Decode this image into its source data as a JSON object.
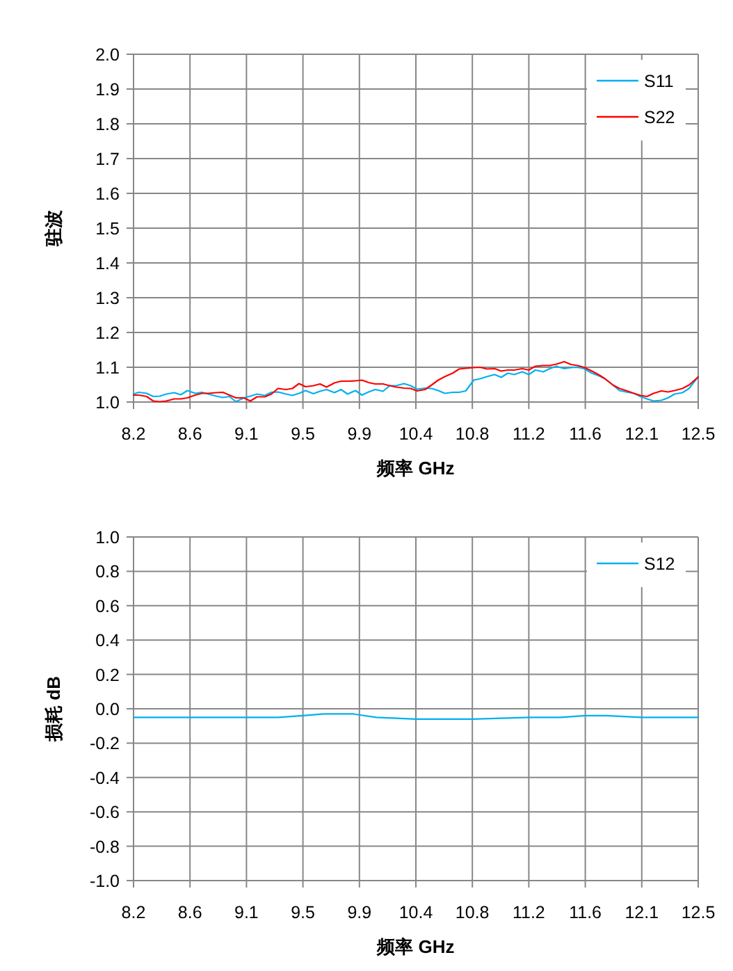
{
  "chart_data": [
    {
      "type": "line",
      "xlabel": "频率 GHz",
      "ylabel": "驻波",
      "xlim": [
        8.2,
        12.5
      ],
      "xticks": [
        {
          "value": 8.2,
          "label": "8.2"
        },
        {
          "value": 8.63,
          "label": "8.6"
        },
        {
          "value": 9.06,
          "label": "9.1"
        },
        {
          "value": 9.49,
          "label": "9.5"
        },
        {
          "value": 9.92,
          "label": "9.9"
        },
        {
          "value": 10.35,
          "label": "10.4"
        },
        {
          "value": 10.78,
          "label": "10.8"
        },
        {
          "value": 11.21,
          "label": "11.2"
        },
        {
          "value": 11.64,
          "label": "11.6"
        },
        {
          "value": 12.07,
          "label": "12.1"
        },
        {
          "value": 12.5,
          "label": "12.5"
        }
      ],
      "ylim": [
        1,
        2
      ],
      "yticks": [
        {
          "value": 1,
          "label": "1.0"
        },
        1.1,
        1.2,
        1.3,
        1.4,
        1.5,
        1.6,
        1.7,
        1.8,
        1.9,
        {
          "value": 2,
          "label": "2.0"
        }
      ],
      "grid": true,
      "legend": "top right",
      "x": [
        8.2,
        8.24,
        8.3,
        8.35,
        8.4,
        8.45,
        8.51,
        8.56,
        8.61,
        8.67,
        8.72,
        8.77,
        8.83,
        8.88,
        8.93,
        8.98,
        9.04,
        9.09,
        9.14,
        9.2,
        9.25,
        9.3,
        9.36,
        9.41,
        9.46,
        9.51,
        9.57,
        9.62,
        9.67,
        9.73,
        9.78,
        9.83,
        9.89,
        9.94,
        9.99,
        10.04,
        10.1,
        10.15,
        10.2,
        10.26,
        10.31,
        10.36,
        10.42,
        10.47,
        10.52,
        10.57,
        10.63,
        10.68,
        10.73,
        10.79,
        10.84,
        10.89,
        10.95,
        11.0,
        11.05,
        11.1,
        11.16,
        11.21,
        11.26,
        11.32,
        11.37,
        11.42,
        11.48,
        11.53,
        11.58,
        11.63,
        11.69,
        11.74,
        11.79,
        11.85,
        11.9,
        11.95,
        12.01,
        12.06,
        12.11,
        12.16,
        12.22,
        12.27,
        12.32,
        12.38,
        12.43,
        12.5
      ],
      "series": [
        {
          "name": "S11",
          "color": "#00b0f0",
          "values": [
            1.023,
            1.028,
            1.025,
            1.016,
            1.017,
            1.023,
            1.027,
            1.021,
            1.033,
            1.025,
            1.028,
            1.023,
            1.017,
            1.013,
            1.016,
            1.001,
            1.012,
            1.017,
            1.023,
            1.019,
            1.028,
            1.029,
            1.023,
            1.019,
            1.025,
            1.033,
            1.024,
            1.031,
            1.036,
            1.027,
            1.036,
            1.023,
            1.033,
            1.02,
            1.029,
            1.036,
            1.031,
            1.047,
            1.047,
            1.053,
            1.047,
            1.037,
            1.04,
            1.039,
            1.033,
            1.025,
            1.028,
            1.028,
            1.032,
            1.063,
            1.067,
            1.073,
            1.079,
            1.071,
            1.083,
            1.079,
            1.087,
            1.079,
            1.092,
            1.087,
            1.096,
            1.103,
            1.096,
            1.099,
            1.1,
            1.096,
            1.083,
            1.076,
            1.067,
            1.049,
            1.033,
            1.029,
            1.025,
            1.016,
            1.009,
            1.003,
            1.005,
            1.012,
            1.023,
            1.027,
            1.039,
            1.073
          ]
        },
        {
          "name": "S22",
          "color": "#ff0000",
          "values": [
            1.02,
            1.02,
            1.016,
            1.003,
            1.001,
            1.003,
            1.009,
            1.009,
            1.012,
            1.02,
            1.025,
            1.025,
            1.027,
            1.028,
            1.02,
            1.012,
            1.012,
            1.003,
            1.015,
            1.015,
            1.023,
            1.039,
            1.036,
            1.039,
            1.053,
            1.044,
            1.047,
            1.052,
            1.043,
            1.055,
            1.06,
            1.06,
            1.061,
            1.063,
            1.056,
            1.052,
            1.052,
            1.047,
            1.043,
            1.04,
            1.039,
            1.032,
            1.036,
            1.049,
            1.063,
            1.073,
            1.083,
            1.095,
            1.097,
            1.099,
            1.1,
            1.095,
            1.096,
            1.089,
            1.092,
            1.092,
            1.096,
            1.092,
            1.103,
            1.105,
            1.105,
            1.109,
            1.116,
            1.108,
            1.105,
            1.1,
            1.089,
            1.079,
            1.067,
            1.049,
            1.039,
            1.033,
            1.025,
            1.019,
            1.016,
            1.025,
            1.032,
            1.029,
            1.033,
            1.039,
            1.049,
            1.072
          ]
        }
      ]
    },
    {
      "type": "line",
      "xlabel": "频率 GHz",
      "ylabel": "损耗 dB",
      "xlim": [
        8.2,
        12.5
      ],
      "xticks": [
        {
          "value": 8.2,
          "label": "8.2"
        },
        {
          "value": 8.63,
          "label": "8.6"
        },
        {
          "value": 9.06,
          "label": "9.1"
        },
        {
          "value": 9.49,
          "label": "9.5"
        },
        {
          "value": 9.92,
          "label": "9.9"
        },
        {
          "value": 10.35,
          "label": "10.4"
        },
        {
          "value": 10.78,
          "label": "10.8"
        },
        {
          "value": 11.21,
          "label": "11.2"
        },
        {
          "value": 11.64,
          "label": "11.6"
        },
        {
          "value": 12.07,
          "label": "12.1"
        },
        {
          "value": 12.5,
          "label": "12.5"
        }
      ],
      "ylim": [
        -1,
        1
      ],
      "yticks": [
        {
          "value": -1,
          "label": "-1.0"
        },
        -0.8,
        -0.6,
        -0.4,
        -0.2,
        {
          "value": 0,
          "label": "0.0"
        },
        0.2,
        0.4,
        0.6,
        0.8,
        {
          "value": 1,
          "label": "1.0"
        }
      ],
      "grid": true,
      "legend": "top right",
      "x": [
        8.2,
        8.63,
        9.06,
        9.3,
        9.49,
        9.65,
        9.76,
        9.87,
        10.05,
        10.35,
        10.66,
        10.78,
        11.21,
        11.45,
        11.64,
        11.8,
        12.07,
        12.27,
        12.5
      ],
      "series": [
        {
          "name": "S12",
          "color": "#00b0f0",
          "values": [
            -0.05,
            -0.05,
            -0.05,
            -0.05,
            -0.04,
            -0.03,
            -0.03,
            -0.03,
            -0.05,
            -0.06,
            -0.06,
            -0.06,
            -0.05,
            -0.05,
            -0.04,
            -0.04,
            -0.05,
            -0.05,
            -0.05
          ]
        }
      ]
    }
  ]
}
